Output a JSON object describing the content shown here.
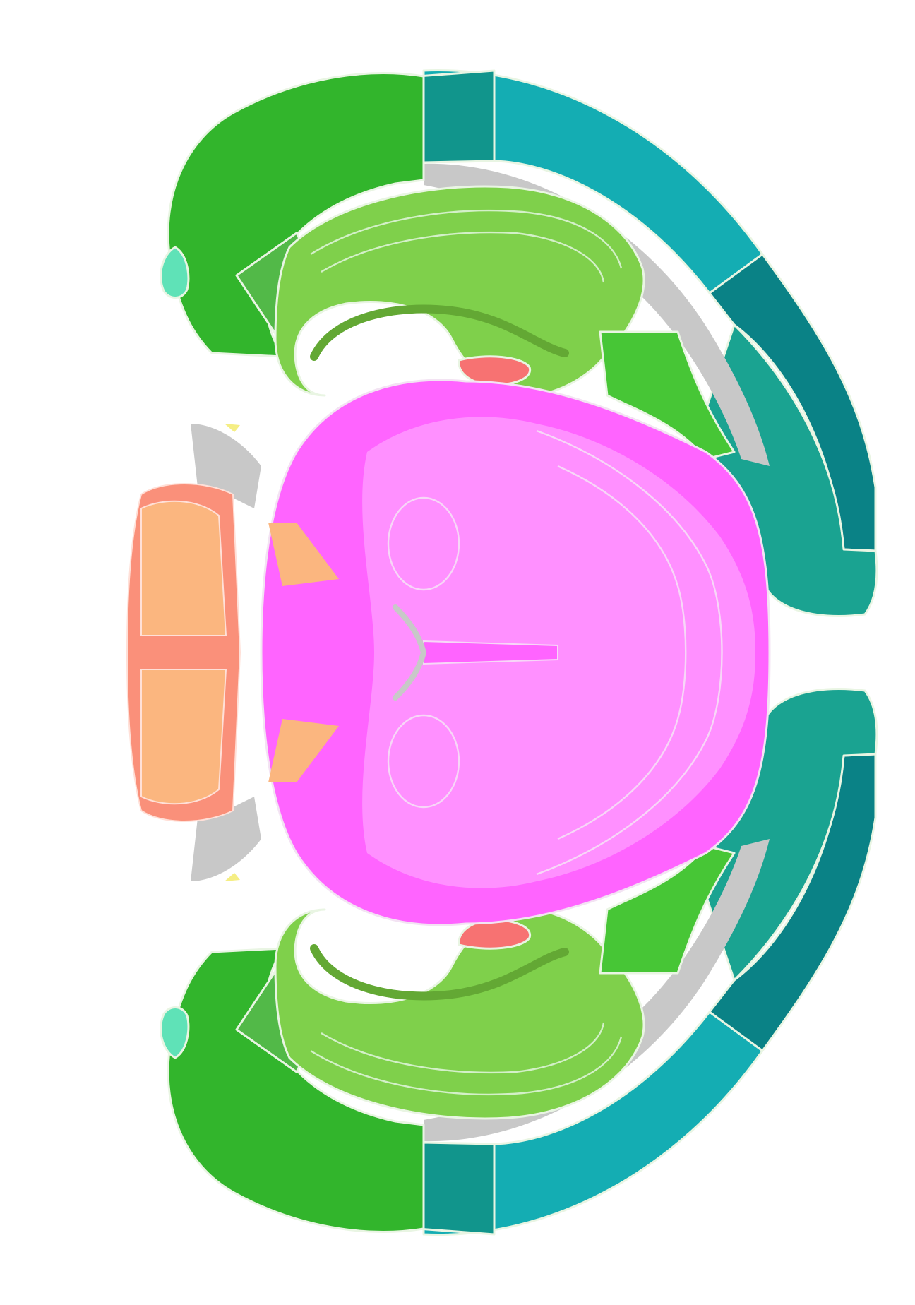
{
  "colors": {
    "background": "#ffffff",
    "cortex_dark_green": "#32b52c",
    "cortex_mid_green": "#52b948",
    "hippocampus_green": "#7fd04b",
    "hippocampus_inner": "#63a834",
    "bright_green": "#47c636",
    "teal_light": "#14adb3",
    "teal_mid": "#11958c",
    "teal_dark": "#0a8286",
    "teal_green": "#1aa391",
    "mint": "#5fe2b7",
    "gray": "#c8c8c8",
    "midbrain_pink": "#ff90ff",
    "midbrain_magenta": "#ff64ff",
    "salmon": "#fa907a",
    "peach": "#fbb67f",
    "red": "#f77272",
    "yellow": "#f5ee84"
  },
  "regions": [
    {
      "id": "isocortex-lateral",
      "color_key": "cortex_dark_green",
      "mirrored": true
    },
    {
      "id": "isocortex-medial",
      "color_key": "teal_light",
      "mirrored": true
    },
    {
      "id": "isocortex-caudal",
      "color_key": "teal_dark",
      "mirrored": true
    },
    {
      "id": "retrosplenial-area",
      "color_key": "teal_mid",
      "mirrored": true
    },
    {
      "id": "entorhinal-area",
      "color_key": "teal_green",
      "mirrored": true
    },
    {
      "id": "hippocampal-formation",
      "color_key": "hippocampus_green",
      "mirrored": true
    },
    {
      "id": "subiculum",
      "color_key": "bright_green",
      "mirrored": true
    },
    {
      "id": "olfactory-tubercle",
      "color_key": "mint",
      "mirrored": true
    },
    {
      "id": "midbrain-hindbrain",
      "color_key": "midbrain_pink",
      "mirrored": false
    },
    {
      "id": "cerebellum",
      "color_key": "peach",
      "mirrored": false
    },
    {
      "id": "fiber-tracts",
      "color_key": "gray",
      "mirrored": true
    }
  ]
}
